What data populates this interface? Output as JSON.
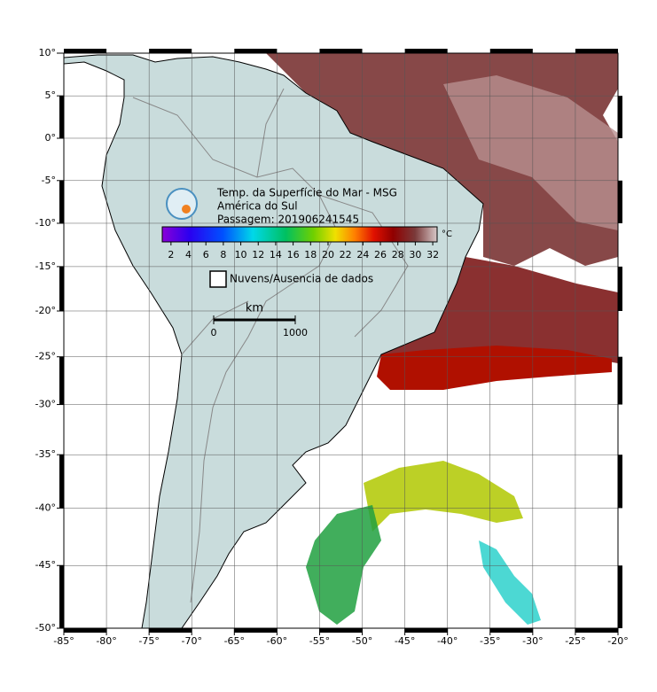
{
  "map": {
    "title": "Temp. da Superfície do Mar - MSG",
    "region": "América do Sul",
    "pass": "Passagem: 201906241545",
    "xlim": [
      -85,
      -20
    ],
    "ylim": [
      -50,
      10
    ],
    "xticks": [
      {
        "value": -85,
        "label": "-85°"
      },
      {
        "value": -80,
        "label": "-80°"
      },
      {
        "value": -75,
        "label": "-75°"
      },
      {
        "value": -70,
        "label": "-70°"
      },
      {
        "value": -65,
        "label": "-65°"
      },
      {
        "value": -60,
        "label": "-60°"
      },
      {
        "value": -55,
        "label": "-55°"
      },
      {
        "value": -50,
        "label": "-50°"
      },
      {
        "value": -45,
        "label": "-45°"
      },
      {
        "value": -40,
        "label": "-40°"
      },
      {
        "value": -35,
        "label": "-35°"
      },
      {
        "value": -30,
        "label": "-30°"
      },
      {
        "value": -25,
        "label": "-25°"
      },
      {
        "value": -20,
        "label": "-20°"
      }
    ],
    "yticks": [
      {
        "value": 10,
        "label": "10°"
      },
      {
        "value": 5,
        "label": "5°"
      },
      {
        "value": 0,
        "label": "0°"
      },
      {
        "value": -5,
        "label": "-5°"
      },
      {
        "value": -10,
        "label": "-10°"
      },
      {
        "value": -15,
        "label": "-15°"
      },
      {
        "value": -20,
        "label": "-20°"
      },
      {
        "value": -25,
        "label": "-25°"
      },
      {
        "value": -30,
        "label": "-30°"
      },
      {
        "value": -35,
        "label": "-35°"
      },
      {
        "value": -40,
        "label": "-40°"
      },
      {
        "value": -45,
        "label": "-45°"
      },
      {
        "value": -50,
        "label": "-50°"
      }
    ],
    "projection": "mercator",
    "grid": true,
    "colorbar": {
      "lim": [
        1,
        32.5
      ],
      "ticks": [
        2,
        4,
        6,
        8,
        10,
        12,
        14,
        16,
        18,
        20,
        22,
        24,
        26,
        28,
        30,
        32
      ],
      "unit": "°C"
    },
    "legend": "Nuvens/Ausencia de dados",
    "scale": {
      "unit": "km",
      "ticks": [
        0,
        1000
      ]
    }
  }
}
